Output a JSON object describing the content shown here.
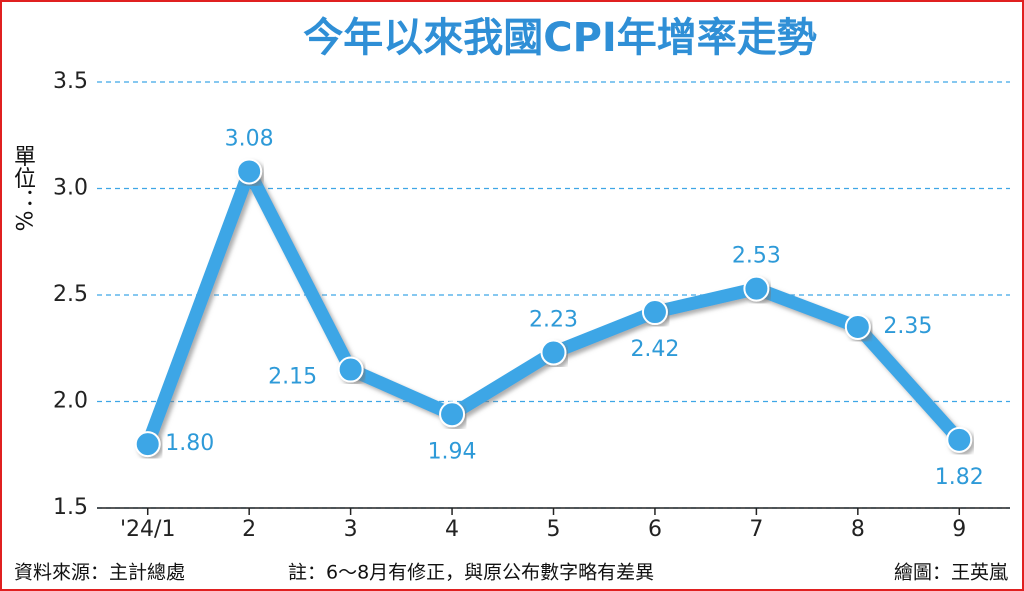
{
  "chart_data": {
    "type": "line",
    "title": "今年以來我國CPI年增率走勢",
    "y_label": "單位：%",
    "categories": [
      "'24/1",
      "2",
      "3",
      "4",
      "5",
      "6",
      "7",
      "8",
      "9"
    ],
    "values": [
      1.8,
      3.08,
      2.15,
      1.94,
      2.23,
      2.42,
      2.53,
      2.35,
      1.82
    ],
    "value_labels": [
      "1.80",
      "3.08",
      "2.15",
      "1.94",
      "2.23",
      "2.42",
      "2.53",
      "2.35",
      "1.82"
    ],
    "color": "#3ea6e6",
    "ylim": [
      1.5,
      3.5
    ],
    "yticks": [
      1.5,
      {
        "value": 2,
        "label": "2.0"
      },
      2.5,
      {
        "value": 3,
        "label": "3.0"
      },
      3.5
    ],
    "grid": true,
    "source": "資料來源：主計總處",
    "note": "註：6～8月有修正，與原公布數字略有差異",
    "credit": "繪圖：王英嵐"
  }
}
